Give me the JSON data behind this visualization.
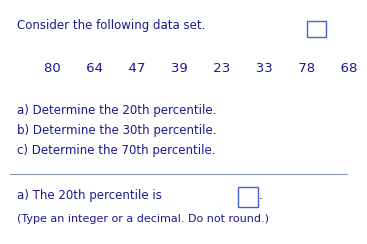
{
  "title": "Consider the following data set.",
  "data_values": "80      64      47      39      23      33      78      68",
  "part_a": "a) Determine the 20th percentile.",
  "part_b": "b) Determine the 30th percentile.",
  "part_c": "c) Determine the 70th percentile.",
  "answer_label": "a) The 20th percentile is",
  "answer_note": "(Type an integer or a decimal. Do not round.)",
  "text_color": "#1a1a8c",
  "bg_color": "#ffffff",
  "line_color": "#8899bb",
  "box_color": "#4466cc",
  "title_fontsize": 8.5,
  "body_fontsize": 8.5,
  "data_fontsize": 9.5,
  "note_fontsize": 8.0
}
